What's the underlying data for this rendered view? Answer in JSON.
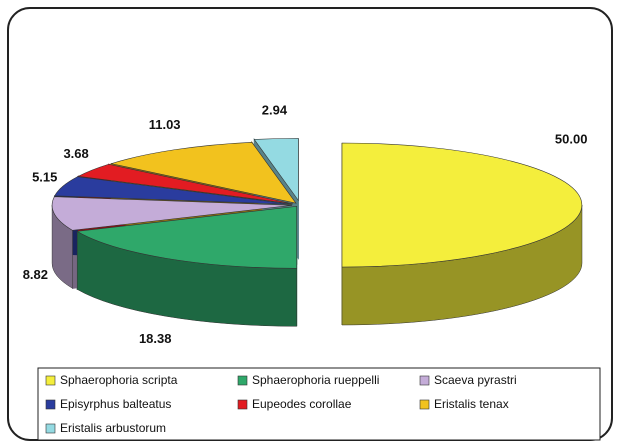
{
  "chart_data": {
    "type": "pie",
    "categories": [
      "Sphaerophoria scripta",
      "Sphaerophoria rueppelli",
      "Scaeva pyrastri",
      "Episyrphus balteatus",
      "Eupeodes corollae",
      "Eristalis tenax",
      "Eristalis arbustorum"
    ],
    "values": [
      50,
      18.38,
      8.82,
      5.15,
      3.68,
      11.03,
      2.94
    ],
    "value_labels": [
      "50.00",
      "18.38",
      "8.82",
      "5.15",
      "3.68",
      "11.03",
      "2.94"
    ],
    "colors": [
      "#f4ee3c",
      "#2fa86a",
      "#c4acd8",
      "#2a3c9e",
      "#e21c22",
      "#f2c21e",
      "#94dae2"
    ]
  }
}
